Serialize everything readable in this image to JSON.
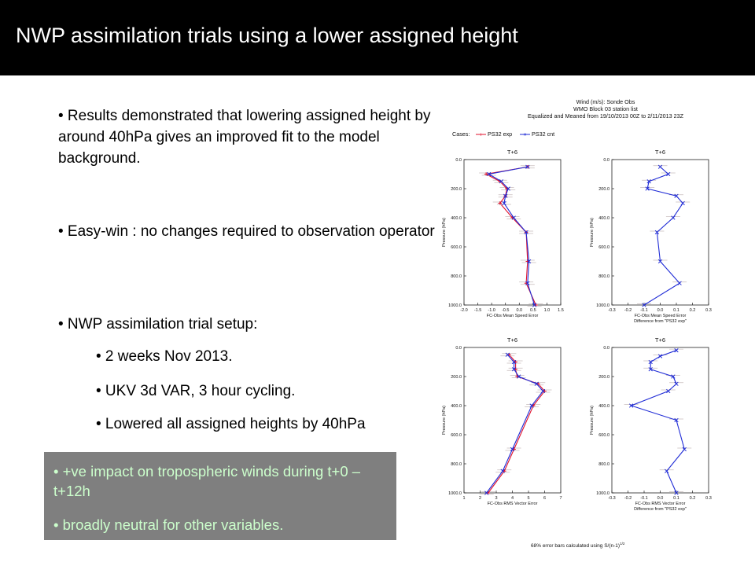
{
  "slide": {
    "title": "NWP assimilation trials using a lower assigned height",
    "bullets": [
      {
        "text": "• Results demonstrated that lowering assigned height by around 40hPa gives an improved fit to the model background."
      },
      {
        "text": "• Easy-win : no changes required to observation operator"
      },
      {
        "text": "• NWP assimilation trial setup:"
      }
    ],
    "sub_bullets": [
      "• 2 weeks Nov 2013.",
      "• UKV 3d VAR, 3 hour cycling.",
      "• Lowered all assigned heights by 40hPa"
    ],
    "callout": [
      "• +ve impact on tropospheric winds during t+0 – t+12h",
      "• broadly neutral for other variables."
    ]
  },
  "figure": {
    "header": [
      "Wind (m/s):  Sonde Obs",
      "WMO Block 03 station list",
      "Equalized and Meaned from 19/10/2013 00Z to 2/11/2013 23Z"
    ],
    "cases_label": "Cases:",
    "footer": "68% error bars calculated using S/(n-1)",
    "footer_sup": "1/2",
    "colors": {
      "exp": "#e0102c",
      "cnt": "#1f2bd6",
      "error_bars": "#c8bcbc"
    }
  },
  "chart_data": [
    {
      "type": "line",
      "panel_title": "T+6",
      "xlabel": "FC-Obs Mean Speed Error",
      "ylabel": "Pressure (hPa)",
      "xlim": [
        -2.0,
        1.5
      ],
      "ylim": [
        1000,
        0
      ],
      "x_ticks": [
        "-2.0",
        "-1.5",
        "-1.0",
        "-0.5",
        "0.0",
        "0.5",
        "1.0",
        "1.5"
      ],
      "y_ticks": [
        "0.0",
        "200.0",
        "400.0",
        "600.0",
        "800.0",
        "1000.0"
      ],
      "y": [
        50,
        100,
        150,
        200,
        250,
        300,
        400,
        500,
        700,
        850,
        1000
      ],
      "series": [
        {
          "name": "PS32 exp",
          "color": "exp",
          "marker": "+",
          "values": [
            0.3,
            -1.2,
            -0.7,
            -0.45,
            -0.5,
            -0.7,
            -0.25,
            0.25,
            0.3,
            0.25,
            0.6
          ]
        },
        {
          "name": "PS32 cnt",
          "color": "cnt",
          "marker": "x",
          "values": [
            0.3,
            -1.1,
            -0.65,
            -0.4,
            -0.5,
            -0.55,
            -0.2,
            0.25,
            0.35,
            0.3,
            0.55
          ]
        }
      ]
    },
    {
      "type": "line",
      "panel_title": "T+6",
      "xlabel": "FC-Obs Mean Speed Error",
      "xlabel2": "Difference from \"PS32 exp\"",
      "ylabel": "Pressure (hPa)",
      "xlim": [
        -0.3,
        0.3
      ],
      "ylim": [
        1000,
        0
      ],
      "x_ticks": [
        "-0.3",
        "-0.2",
        "-0.1",
        "0.0",
        "0.1",
        "0.2",
        "0.3"
      ],
      "y_ticks": [
        "0.0",
        "200.0",
        "400.0",
        "600.0",
        "800.0",
        "1000.0"
      ],
      "y": [
        50,
        100,
        150,
        200,
        250,
        300,
        400,
        500,
        700,
        850,
        1000
      ],
      "series": [
        {
          "name": "PS32 cnt",
          "color": "cnt",
          "marker": "x",
          "values": [
            0.0,
            0.05,
            -0.07,
            -0.08,
            0.1,
            0.14,
            0.08,
            -0.02,
            0.0,
            0.12,
            -0.1
          ]
        }
      ]
    },
    {
      "type": "line",
      "panel_title": "T+6",
      "xlabel": "FC-Obs RMS Vector Error",
      "ylabel": "Pressure (hPa)",
      "xlim": [
        1,
        7
      ],
      "ylim": [
        1000,
        0
      ],
      "x_ticks": [
        "1",
        "2",
        "3",
        "4",
        "5",
        "6",
        "7"
      ],
      "y_ticks": [
        "0.0",
        "200.0",
        "400.0",
        "600.0",
        "800.0",
        "1000.0"
      ],
      "y": [
        50,
        100,
        150,
        200,
        250,
        300,
        400,
        700,
        850,
        1000
      ],
      "series": [
        {
          "name": "PS32 exp",
          "color": "exp",
          "marker": "+",
          "values": [
            3.8,
            4.2,
            4.2,
            4.3,
            5.6,
            6.0,
            5.3,
            4.1,
            3.5,
            2.5
          ]
        },
        {
          "name": "PS32 cnt",
          "color": "cnt",
          "marker": "x",
          "values": [
            3.7,
            4.1,
            4.1,
            4.4,
            5.5,
            5.9,
            5.2,
            4.0,
            3.4,
            2.4
          ]
        }
      ]
    },
    {
      "type": "line",
      "panel_title": "T+6",
      "xlabel": "FC-Obs RMS Vector Error",
      "xlabel2": "Difference from \"PS32 exp\"",
      "ylabel": "Pressure (hPa)",
      "xlim": [
        -0.3,
        0.3
      ],
      "ylim": [
        1000,
        0
      ],
      "x_ticks": [
        "-0.3",
        "-0.2",
        "-0.1",
        "0.0",
        "0.1",
        "0.2",
        "0.3"
      ],
      "y_ticks": [
        "0.0",
        "200.0",
        "400.0",
        "600.0",
        "800.0",
        "1000.0"
      ],
      "y": [
        20,
        60,
        100,
        150,
        200,
        250,
        300,
        400,
        500,
        700,
        850,
        1000
      ],
      "series": [
        {
          "name": "PS32 cnt",
          "color": "cnt",
          "marker": "x",
          "values": [
            0.1,
            0.0,
            -0.06,
            -0.06,
            0.08,
            0.1,
            0.05,
            -0.18,
            0.1,
            0.15,
            0.04,
            0.1
          ]
        }
      ]
    }
  ]
}
